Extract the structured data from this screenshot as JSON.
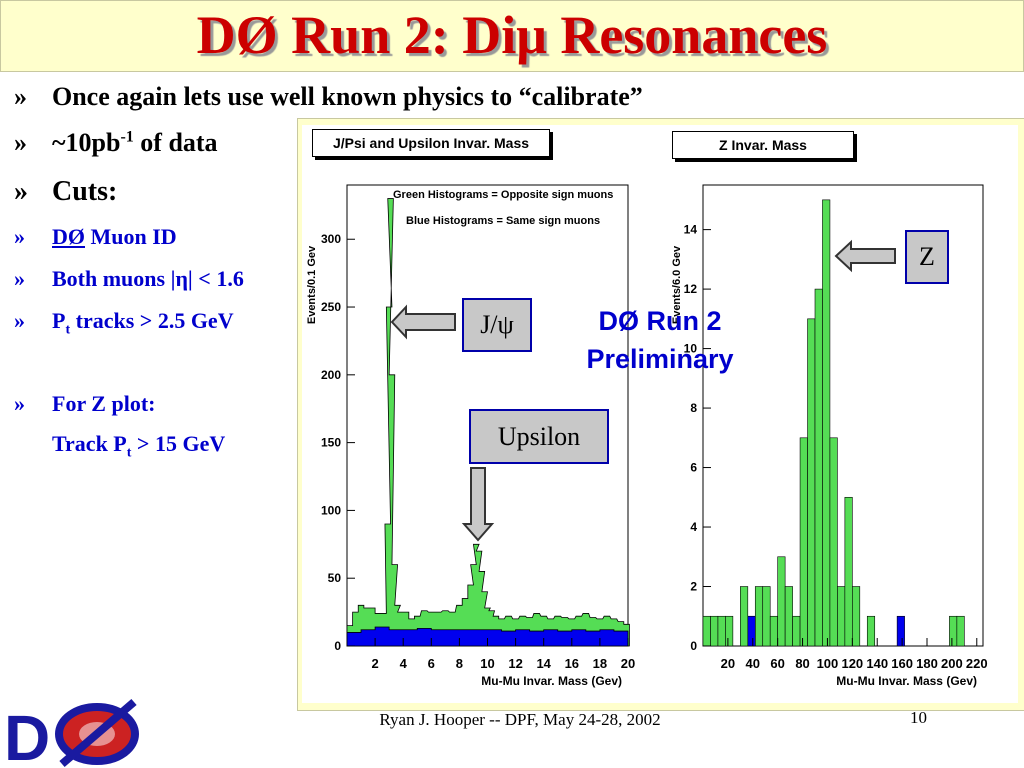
{
  "title": "DØ Run 2: Diμ Resonances",
  "bullets": [
    {
      "mark": "»",
      "text": "Once again lets use well known physics to “calibrate”"
    },
    {
      "mark": "»",
      "text_pre": "~10pb",
      "sup": "-1",
      "text_post": " of data"
    },
    {
      "mark": "»",
      "text": "Cuts:"
    },
    {
      "mark": "»",
      "text_u": "DØ",
      "text_post": " Muon ID"
    },
    {
      "mark": "»",
      "text": "Both muons |η| < 1.6"
    },
    {
      "mark": "»",
      "text_pre": "P",
      "sub": "t",
      "text_post": " tracks > 2.5 GeV"
    },
    {
      "mark": "»",
      "text": "For Z plot:"
    },
    {
      "text_pre": "Track P",
      "sub": "t",
      "text_post": " > 15 GeV"
    }
  ],
  "labels": {
    "jpsi": "J/ψ",
    "upsilon": "Upsilon",
    "z": "Z"
  },
  "preliminary": [
    "DØ Run 2",
    "Preliminary"
  ],
  "footer": {
    "author": "Ryan J. Hooper -- DPF, May 24-28, 2002",
    "page": "10"
  },
  "colors": {
    "title": "#cc0000",
    "opposite_sign": "#55dd55",
    "same_sign": "#0000ee",
    "accent": "#0000cc"
  },
  "chart_data": [
    {
      "type": "bar",
      "title": "J/Psi and Upsilon Invar. Mass",
      "xlabel": "Mu-Mu Invar. Mass (Gev)",
      "ylabel": "Events/0.1 Gev",
      "xlim": [
        0,
        20
      ],
      "ylim": [
        0,
        340
      ],
      "xticks": [
        2,
        4,
        6,
        8,
        10,
        12,
        14,
        16,
        18,
        20
      ],
      "yticks": [
        0,
        50,
        100,
        150,
        200,
        250,
        300
      ],
      "annotations": [
        "Green Histograms = Opposite sign muons",
        "Blue Histograms = Same sign muons"
      ],
      "series": [
        {
          "name": "Opposite sign muons",
          "x": [
            0.2,
            0.6,
            1.0,
            1.4,
            1.8,
            2.2,
            2.6,
            2.9,
            3.0,
            3.1,
            3.2,
            3.4,
            3.6,
            3.8,
            4.2,
            4.6,
            5.0,
            5.5,
            6.0,
            6.5,
            7.0,
            7.5,
            8.0,
            8.4,
            8.8,
            9.0,
            9.2,
            9.4,
            9.6,
            9.8,
            10.0,
            10.3,
            10.6,
            11.0,
            11.5,
            12.0,
            12.5,
            13.0,
            13.5,
            14.0,
            14.5,
            15.0,
            15.5,
            16.0,
            16.5,
            17.0,
            17.5,
            18.0,
            18.5,
            19.0,
            19.5,
            19.9
          ],
          "values": [
            15,
            25,
            30,
            28,
            28,
            24,
            24,
            90,
            250,
            330,
            200,
            60,
            30,
            25,
            25,
            20,
            22,
            26,
            25,
            25,
            26,
            25,
            30,
            35,
            45,
            60,
            75,
            70,
            55,
            40,
            28,
            26,
            22,
            20,
            22,
            20,
            22,
            21,
            24,
            22,
            20,
            22,
            21,
            20,
            22,
            24,
            21,
            20,
            22,
            20,
            18,
            16
          ]
        },
        {
          "name": "Same sign muons",
          "x": [
            0.5,
            1.5,
            2.5,
            3.5,
            4.5,
            5.5,
            6.5,
            7.5,
            8.5,
            9.5,
            10.5,
            11.5,
            12.5,
            13.5,
            14.5,
            15.5,
            16.5,
            17.5,
            18.5,
            19.5
          ],
          "values": [
            10,
            12,
            14,
            12,
            12,
            13,
            12,
            12,
            12,
            12,
            12,
            11,
            12,
            11,
            12,
            11,
            12,
            11,
            12,
            11
          ]
        }
      ]
    },
    {
      "type": "bar",
      "title": "Z Invar. Mass",
      "xlabel": "Mu-Mu Invar. Mass (Gev)",
      "ylabel": "Events/6.0 Gev",
      "xlim": [
        0,
        225
      ],
      "ylim": [
        0,
        15.5
      ],
      "xticks": [
        20,
        40,
        60,
        80,
        100,
        120,
        140,
        160,
        180,
        200,
        220
      ],
      "yticks": [
        0,
        2,
        4,
        6,
        8,
        10,
        12,
        14
      ],
      "bin_width": 6,
      "series": [
        {
          "name": "Opposite sign muons",
          "x": [
            3,
            9,
            15,
            21,
            27,
            33,
            39,
            45,
            51,
            57,
            63,
            69,
            75,
            81,
            87,
            93,
            99,
            105,
            111,
            117,
            123,
            129,
            135,
            141,
            147,
            153,
            159,
            165,
            171,
            177,
            183,
            189,
            195,
            201,
            207,
            213,
            219
          ],
          "values": [
            1,
            1,
            1,
            1,
            0,
            2,
            1,
            2,
            2,
            1,
            3,
            2,
            1,
            7,
            11,
            12,
            15,
            7,
            2,
            5,
            2,
            0,
            1,
            0,
            0,
            0,
            0,
            0,
            0,
            0,
            0,
            0,
            0,
            1,
            1,
            0,
            0
          ]
        },
        {
          "name": "Same sign muons",
          "x": [
            39,
            159
          ],
          "values": [
            1,
            1
          ]
        }
      ]
    }
  ]
}
